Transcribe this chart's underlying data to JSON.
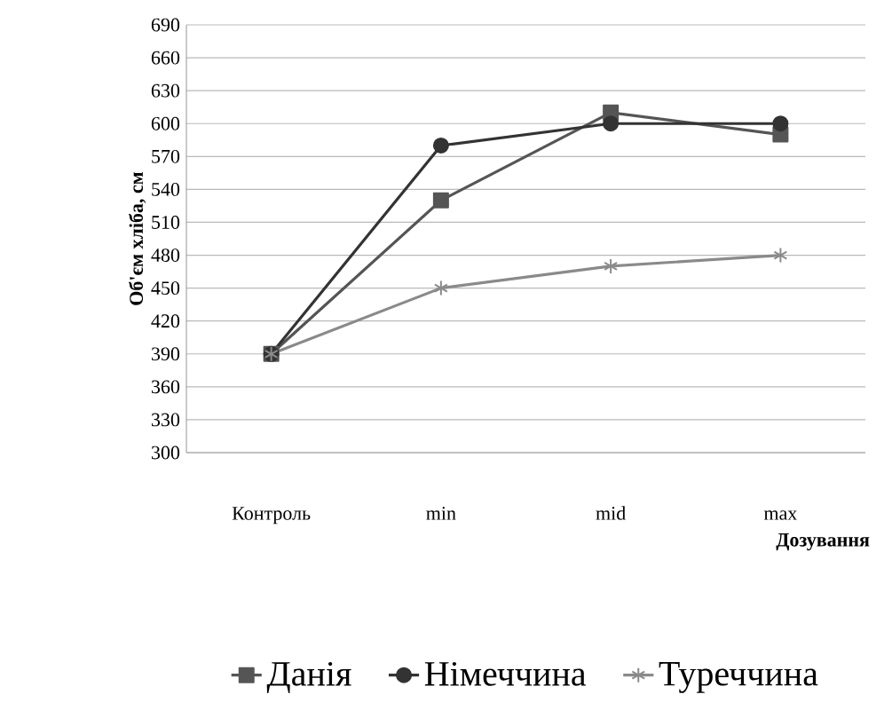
{
  "chart_data": {
    "type": "line",
    "ylabel": "Об'єм хліба, см",
    "xlabel": "Дозування",
    "categories": [
      "Контроль",
      "min",
      "mid",
      "max"
    ],
    "series": [
      {
        "name": "Данія",
        "color": "#555555",
        "marker": "square",
        "values": [
          390,
          530,
          610,
          590
        ]
      },
      {
        "name": "Німеччина",
        "color": "#333333",
        "marker": "circle",
        "values": [
          390,
          580,
          600,
          600
        ]
      },
      {
        "name": "Туреччина",
        "color": "#8a8a8a",
        "marker": "cross",
        "values": [
          390,
          450,
          470,
          480
        ]
      }
    ],
    "ylim": [
      300,
      690
    ],
    "yticks": [
      300,
      330,
      360,
      390,
      420,
      450,
      480,
      510,
      540,
      570,
      600,
      630,
      660,
      690
    ],
    "grid": "y",
    "legend": "bottom",
    "line_style": "solid"
  }
}
